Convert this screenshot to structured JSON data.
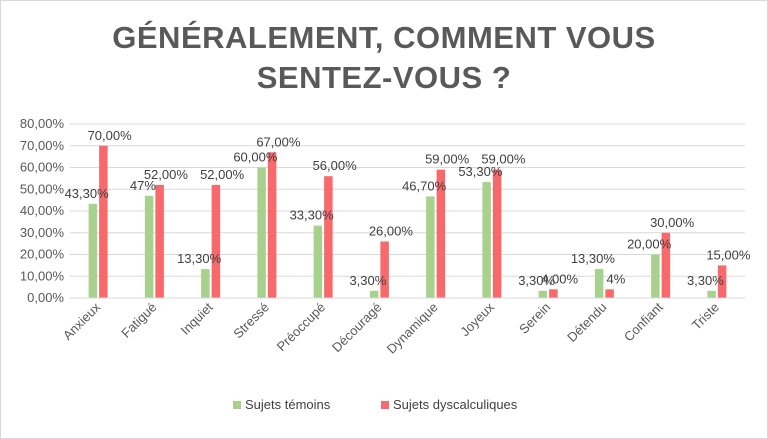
{
  "chart_data": {
    "type": "bar",
    "title": "GÉNÉRALEMENT, COMMENT VOUS SENTEZ-VOUS ?",
    "title_lines": [
      "GÉNÉRALEMENT, COMMENT VOUS",
      "SENTEZ-VOUS ?"
    ],
    "categories": [
      "Anxieux",
      "Fatigué",
      "Inquiet",
      "Stressé",
      "Préoccupé",
      "Découragé",
      "Dynamique",
      "Joyeux",
      "Serein",
      "Détendu",
      "Confiant",
      "Triste"
    ],
    "series": [
      {
        "name": "Sujets témoins",
        "color": "#a9d18e",
        "values": [
          43.3,
          47,
          13.3,
          60,
          33.3,
          3.3,
          46.7,
          53.3,
          3.3,
          13.3,
          20,
          3.3
        ],
        "labels": [
          "43,30%",
          "47%",
          "13,30%",
          "60,00%",
          "33,30%",
          "3,30%",
          "46,70%",
          "53,30%",
          "3,30%",
          "13,30%",
          "20,00%",
          "3,30%"
        ]
      },
      {
        "name": "Sujets dyscalculiques",
        "color": "#f8696b",
        "values": [
          70,
          52,
          52,
          67,
          56,
          26,
          59,
          59,
          4,
          4,
          30,
          15
        ],
        "labels": [
          "70,00%",
          "52,00%",
          "52,00%",
          "67,00%",
          "56,00%",
          "26,00%",
          "59,00%",
          "59,00%",
          "4,00%",
          "4%",
          "30,00%",
          "15,00%"
        ]
      }
    ],
    "ylim": [
      0,
      80
    ],
    "yticks": [
      0,
      10,
      20,
      30,
      40,
      50,
      60,
      70,
      80
    ],
    "ytick_labels": [
      "0,00%",
      "10,00%",
      "20,00%",
      "30,00%",
      "40,00%",
      "50,00%",
      "60,00%",
      "70,00%",
      "80,00%"
    ],
    "grid": true,
    "legend": "bottom"
  }
}
